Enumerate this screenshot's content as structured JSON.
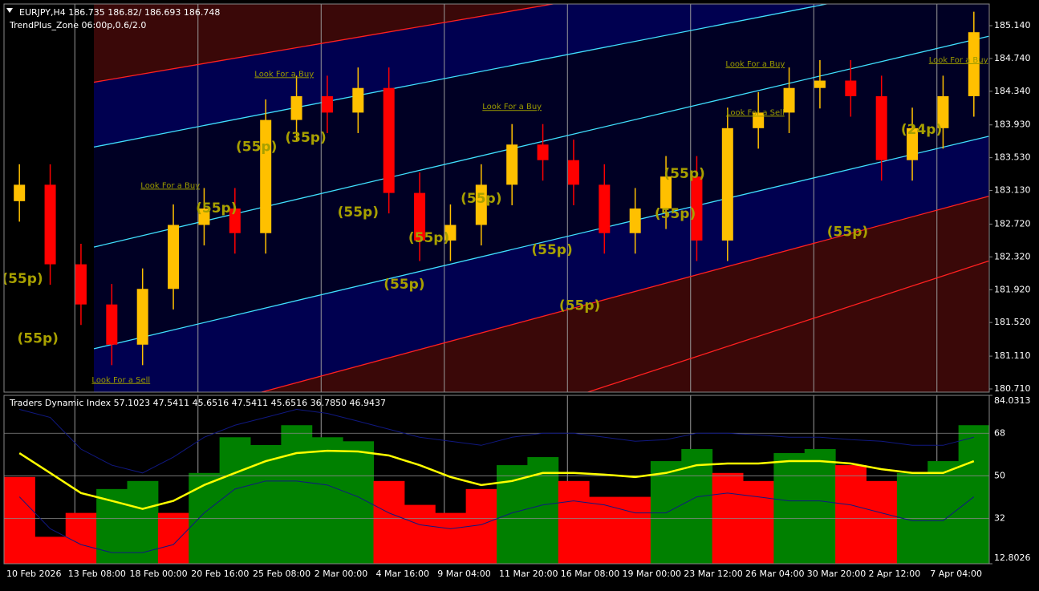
{
  "chart_data": [
    {
      "type": "candlestick",
      "title": "EURJPY,H4  186.735 186.82/ 186.693 186.748",
      "subtitle": "TrendPlus_Zone 06:00p,0.6/2.0",
      "categories": [
        "10 Feb 2026",
        null,
        "13 Feb 08:00",
        null,
        "18 Feb 00:00",
        null,
        "20 Feb 16:00",
        null,
        "25 Feb 08:00",
        null,
        "2 Mar 00:00",
        null,
        "4 Mar 16:00",
        null,
        "9 Mar 04:00",
        null,
        "11 Mar 20:00",
        null,
        "16 Mar 08:00",
        null,
        "19 Mar 00:00",
        null,
        "23 Mar 12:00",
        null,
        "26 Mar 04:00",
        null,
        "30 Mar 20:00",
        null,
        "2 Apr 12:00",
        null,
        "7 Apr 04:00",
        null
      ],
      "open": [
        183.0,
        183.2,
        182.23,
        181.74,
        181.25,
        181.93,
        182.71,
        182.91,
        182.61,
        183.99,
        184.28,
        184.08,
        184.38,
        183.1,
        182.52,
        182.71,
        183.2,
        183.69,
        183.5,
        183.2,
        182.61,
        182.91,
        183.3,
        182.52,
        183.89,
        184.08,
        184.38,
        184.47,
        184.28,
        183.5,
        183.89,
        184.28
      ],
      "high": [
        183.45,
        183.45,
        182.48,
        181.99,
        182.18,
        182.96,
        183.16,
        183.16,
        184.24,
        184.53,
        184.53,
        184.63,
        184.63,
        183.35,
        182.96,
        183.45,
        183.94,
        183.94,
        183.75,
        183.45,
        183.16,
        183.55,
        183.55,
        184.14,
        184.33,
        184.63,
        184.72,
        184.72,
        184.53,
        184.14,
        184.53,
        185.31
      ],
      "low": [
        182.75,
        181.98,
        181.49,
        181.0,
        181.0,
        181.68,
        182.46,
        182.36,
        182.36,
        183.74,
        183.83,
        183.83,
        182.85,
        182.27,
        182.27,
        182.46,
        182.95,
        183.25,
        182.95,
        182.36,
        182.36,
        182.66,
        182.27,
        182.27,
        183.64,
        183.83,
        184.13,
        184.03,
        183.25,
        183.25,
        183.64,
        184.03
      ],
      "close": [
        183.2,
        182.23,
        181.74,
        181.25,
        181.93,
        182.71,
        182.91,
        182.61,
        183.99,
        184.28,
        184.08,
        184.38,
        183.1,
        182.52,
        182.71,
        183.2,
        183.69,
        183.5,
        183.2,
        182.61,
        182.91,
        183.3,
        182.52,
        183.89,
        184.08,
        184.38,
        184.47,
        184.28,
        183.5,
        183.89,
        184.28,
        185.06
      ],
      "up_color": "#ffc000",
      "down_color": "#ff0000",
      "ylim": [
        180.671,
        185.404
      ],
      "yticks": [
        {
          "value": 185.14,
          "label": "185.140"
        },
        {
          "value": 184.74,
          "label": "184.740"
        },
        {
          "value": 184.34,
          "label": "184.340"
        },
        {
          "value": 183.93,
          "label": "183.930"
        },
        {
          "value": 183.53,
          "label": "183.530"
        },
        {
          "value": 183.13,
          "label": "183.130"
        },
        {
          "value": 182.72,
          "label": "182.720"
        },
        {
          "value": 182.32,
          "label": "182.320"
        },
        {
          "value": 181.92,
          "label": "181.920"
        },
        {
          "value": 181.52,
          "label": "181.520"
        },
        {
          "value": 181.11,
          "label": "181.110"
        },
        {
          "value": 180.71,
          "label": "180.710"
        }
      ],
      "channels": [
        {
          "color": "#ff2020",
          "x": [
            2.42,
            31.48
          ],
          "values": [
            184.45,
            186.31
          ]
        },
        {
          "color": "#40e0ff",
          "x": [
            2.42,
            31.48
          ],
          "values": [
            183.66,
            185.79
          ]
        },
        {
          "color": "#40e0ff",
          "x": [
            2.42,
            31.48
          ],
          "values": [
            182.44,
            185.01
          ]
        },
        {
          "color": "#40e0ff",
          "x": [
            2.42,
            31.48
          ],
          "values": [
            181.2,
            183.79
          ]
        },
        {
          "color": "#ff2020",
          "x": [
            2.42,
            31.48
          ],
          "values": [
            180.12,
            183.06
          ]
        },
        {
          "color": "#ff2020",
          "x": [
            2.42,
            31.48
          ],
          "values": [
            178.7,
            182.27
          ]
        }
      ],
      "annotations": [
        {
          "text": "Look For a Buy",
          "x": 4.9,
          "y": 183.19,
          "bold": false
        },
        {
          "text": "(55p)",
          "x": 6.4,
          "y": 182.91,
          "bold": true
        },
        {
          "text": "(55p)",
          "x": 7.7,
          "y": 183.66,
          "bold": true
        },
        {
          "text": "(35p)",
          "x": 9.3,
          "y": 183.77,
          "bold": true
        },
        {
          "text": "Look For a Buy",
          "x": 8.6,
          "y": 184.55,
          "bold": false
        },
        {
          "text": "(55p)",
          "x": 11.0,
          "y": 182.86,
          "bold": true
        },
        {
          "text": "(55p)",
          "x": 12.5,
          "y": 181.98,
          "bold": true
        },
        {
          "text": "(55p)",
          "x": 13.3,
          "y": 182.55,
          "bold": true
        },
        {
          "text": "(55p)",
          "x": 15.0,
          "y": 183.03,
          "bold": true
        },
        {
          "text": "Look For a Buy",
          "x": 16.0,
          "y": 184.15,
          "bold": false
        },
        {
          "text": "(55p)",
          "x": 17.3,
          "y": 182.4,
          "bold": true
        },
        {
          "text": "(55p)",
          "x": 18.2,
          "y": 181.72,
          "bold": true
        },
        {
          "text": "(55p)",
          "x": 21.3,
          "y": 182.84,
          "bold": true
        },
        {
          "text": "(55p)",
          "x": 21.6,
          "y": 183.33,
          "bold": true
        },
        {
          "text": "Look For a Buy",
          "x": 23.9,
          "y": 184.67,
          "bold": false
        },
        {
          "text": "Look For a Sell",
          "x": 23.9,
          "y": 184.08,
          "bold": false
        },
        {
          "text": "(55p)",
          "x": 26.9,
          "y": 182.62,
          "bold": true
        },
        {
          "text": "(24p)",
          "x": 29.3,
          "y": 183.87,
          "bold": true
        },
        {
          "text": "Look For a Buy",
          "x": 30.5,
          "y": 184.72,
          "bold": false
        },
        {
          "text": "Look For a Sell",
          "x": 3.3,
          "y": 180.82,
          "bold": false
        },
        {
          "text": "(55p)",
          "x": 0.6,
          "y": 181.32,
          "bold": true
        },
        {
          "text": "(55p)",
          "x": 0.1,
          "y": 182.05,
          "bold": true
        }
      ]
    },
    {
      "type": "area",
      "title": "Traders Dynamic Index 57.1023 47.5411 45.6516 47.5411 45.6516 36.7850 46.9437",
      "ylim": [
        12.8026,
        84.0313
      ],
      "yticks": [
        84.0313,
        68,
        50,
        32,
        12.8026
      ],
      "series": [
        {
          "color": "#008000",
          "down_color": "#ff0000",
          "values": [
            49.5,
            24.2,
            34.3,
            44.4,
            47.8,
            34.3,
            51.2,
            66.3,
            63.0,
            71.4,
            66.3,
            64.6,
            47.8,
            37.7,
            34.3,
            44.4,
            54.5,
            57.9,
            47.8,
            41.1,
            41.1,
            56.2,
            61.3,
            51.2,
            47.8,
            59.6,
            61.3,
            54.5,
            47.8,
            51.2,
            56.2,
            71.4
          ]
        },
        {
          "color": "#ffff00",
          "values": [
            59.6,
            51.2,
            42.7,
            39.4,
            36.0,
            39.4,
            46.1,
            51.2,
            56.2,
            59.6,
            60.6,
            60.3,
            58.6,
            54.5,
            49.5,
            46.1,
            47.8,
            51.2,
            51.2,
            50.5,
            49.5,
            51.2,
            54.5,
            55.2,
            55.2,
            56.2,
            56.2,
            55.2,
            52.8,
            51.2,
            51.2,
            56.2
          ]
        },
        {
          "color": "#101880",
          "values": [
            78.1,
            74.7,
            61.3,
            54.5,
            51.2,
            57.9,
            66.3,
            71.4,
            74.7,
            78.1,
            76.4,
            73.1,
            69.7,
            66.3,
            64.6,
            62.9,
            66.3,
            68.0,
            68.0,
            66.3,
            64.6,
            65.3,
            68.0,
            68.0,
            67.3,
            66.3,
            66.3,
            65.3,
            64.6,
            62.9,
            62.9,
            66.3
          ]
        },
        {
          "color": "#101880",
          "values": [
            41.1,
            27.6,
            20.9,
            17.5,
            17.5,
            20.9,
            34.3,
            44.4,
            47.8,
            47.8,
            46.1,
            41.1,
            34.3,
            29.3,
            27.6,
            29.3,
            34.3,
            37.7,
            39.4,
            37.7,
            34.3,
            34.3,
            41.1,
            42.7,
            41.1,
            39.4,
            39.4,
            37.7,
            34.3,
            31.0,
            31.0,
            41.1
          ]
        }
      ]
    }
  ]
}
